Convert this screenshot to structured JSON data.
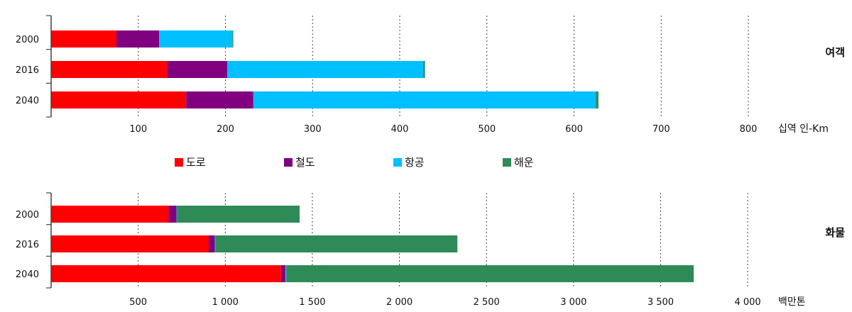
{
  "colors": {
    "도로": "#ff0000",
    "철도": "#800080",
    "항공": "#00bfff",
    "해운": "#2e8b57"
  },
  "legend": [
    {
      "name": "도로",
      "color": "#ff0000"
    },
    {
      "name": "철도",
      "color": "#800080"
    },
    {
      "name": "항공",
      "color": "#00bfff"
    },
    {
      "name": "해운",
      "color": "#2e8b57"
    }
  ],
  "chart_data": [
    {
      "type": "bar",
      "orientation": "horizontal",
      "stacked": true,
      "title": "여객",
      "unit_label": "십역 인-Km",
      "categories": [
        "2000",
        "2016",
        "2040"
      ],
      "series": [
        {
          "name": "도로",
          "values": [
            75,
            133,
            155
          ]
        },
        {
          "name": "철도",
          "values": [
            49,
            69,
            77
          ]
        },
        {
          "name": "항공",
          "values": [
            84,
            225,
            393
          ]
        },
        {
          "name": "해운",
          "values": [
            1,
            2,
            3
          ]
        }
      ],
      "xlim": [
        0,
        900
      ],
      "ticks": [
        100,
        200,
        300,
        400,
        500,
        600,
        700,
        800
      ],
      "tick_labels": [
        "100",
        "200",
        "300",
        "400",
        "500",
        "600",
        "700",
        "800"
      ],
      "grid": "vertical-dotted"
    },
    {
      "type": "bar",
      "orientation": "horizontal",
      "stacked": true,
      "title": "화물",
      "unit_label": "백만톤",
      "categories": [
        "2000",
        "2016",
        "2040"
      ],
      "series": [
        {
          "name": "도로",
          "values": [
            675,
            905,
            1320
          ]
        },
        {
          "name": "철도",
          "values": [
            45,
            35,
            25
          ]
        },
        {
          "name": "항공",
          "values": [
            2,
            3,
            5
          ]
        },
        {
          "name": "해운",
          "values": [
            705,
            1390,
            2340
          ]
        }
      ],
      "xlim": [
        0,
        4500
      ],
      "ticks": [
        500,
        1000,
        1500,
        2000,
        2500,
        3000,
        3500,
        4000
      ],
      "tick_labels": [
        "500",
        "1 000",
        "1 500",
        "2 000",
        "2 500",
        "3 000",
        "3 500",
        "4 000"
      ],
      "grid": "vertical-dotted"
    }
  ]
}
